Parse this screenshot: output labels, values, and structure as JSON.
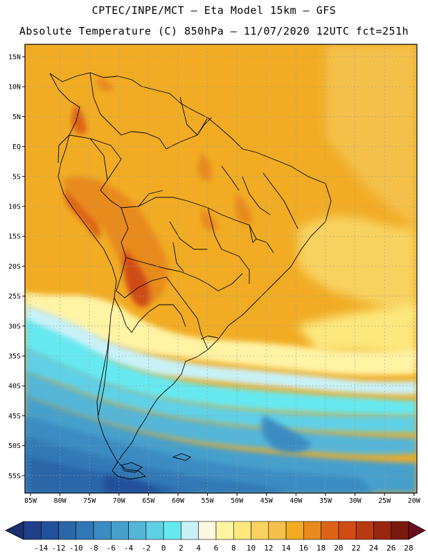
{
  "header": {
    "line1": "CPTEC/INPE/MCT –  Eta Model 15km – GFS",
    "line2": "Absolute Temperature (C) 850hPa – 11/07/2020 12UTC fct=251h"
  },
  "axes": {
    "lat_labels": [
      "15N",
      "10N",
      "5N",
      "EQ",
      "5S",
      "10S",
      "15S",
      "20S",
      "25S",
      "30S",
      "35S",
      "40S",
      "45S",
      "50S",
      "55S"
    ],
    "lon_labels": [
      "85W",
      "80W",
      "75W",
      "70W",
      "65W",
      "60W",
      "55W",
      "50W",
      "45W",
      "40W",
      "35W",
      "30W",
      "25W",
      "20W"
    ]
  },
  "colorbar": {
    "labels": [
      "-14",
      "-12",
      "-10",
      "-8",
      "-6",
      "-4",
      "-2",
      "0",
      "2",
      "4",
      "6",
      "8",
      "10",
      "12",
      "14",
      "16",
      "18",
      "20",
      "22",
      "24",
      "26",
      "28"
    ],
    "colors": [
      "#1f3f8a",
      "#23509a",
      "#2a66a8",
      "#3179b6",
      "#3a8cc2",
      "#47a0cc",
      "#54b6d8",
      "#5ed0e6",
      "#66e8f0",
      "#c8f2f8",
      "#fff8e0",
      "#fff3a4",
      "#fde87e",
      "#f8d25e",
      "#f4c04a",
      "#f1ac24",
      "#e88a1e",
      "#dd6416",
      "#cf4c14",
      "#b83a12",
      "#98260e",
      "#7a1a0c"
    ],
    "under_color": "#1a2f70",
    "over_color": "#6a0e1c"
  }
}
